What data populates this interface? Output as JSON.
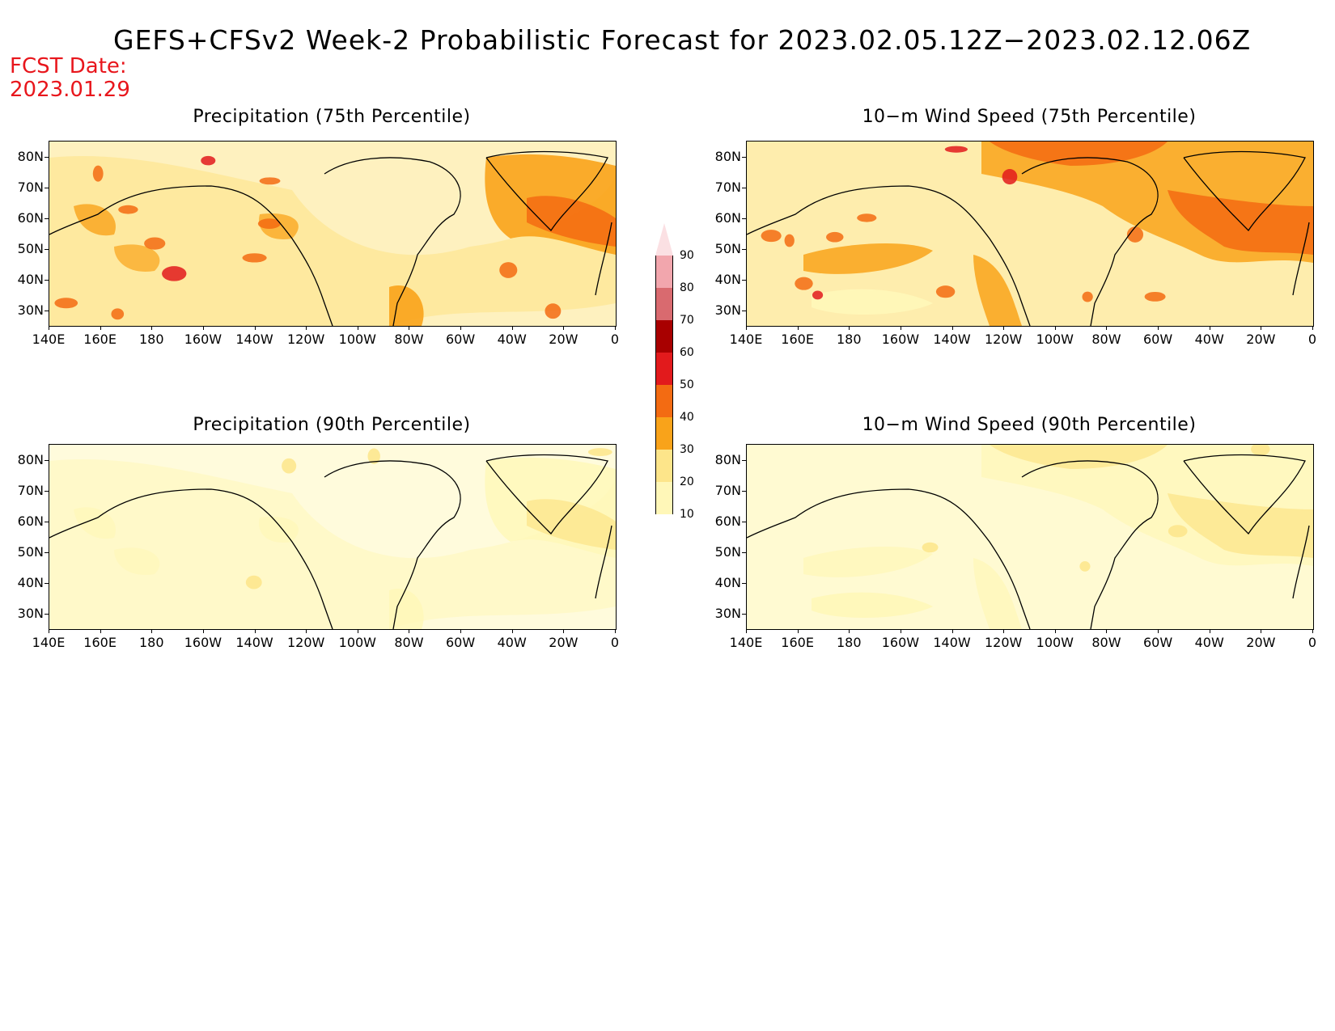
{
  "title": "GEFS+CFSv2 Week-2 Probabilistic Forecast for 2023.02.05.12Z−2023.02.12.06Z",
  "fcst_date_label": "FCST Date:",
  "fcst_date_value": "2023.01.29",
  "panels": [
    {
      "title": "Precipitation (75th Percentile)",
      "intensity": 1.0,
      "theme": "precip"
    },
    {
      "title": "10−m Wind Speed (75th Percentile)",
      "intensity": 1.0,
      "theme": "wind"
    },
    {
      "title": "Precipitation (90th Percentile)",
      "intensity": 0.35,
      "theme": "precip"
    },
    {
      "title": "10−m Wind Speed (90th Percentile)",
      "intensity": 0.35,
      "theme": "wind"
    }
  ],
  "lat_ticks": [
    "80N",
    "70N",
    "60N",
    "50N",
    "40N",
    "30N"
  ],
  "lon_ticks": [
    "140E",
    "160E",
    "180",
    "160W",
    "140W",
    "120W",
    "100W",
    "80W",
    "60W",
    "40W",
    "20W",
    "0"
  ],
  "legend": {
    "levels": [
      "10",
      "20",
      "30",
      "40",
      "50",
      "60",
      "70",
      "80",
      "90"
    ],
    "colors": [
      "#fff7b8",
      "#fde58a",
      "#f9a31a",
      "#f36b12",
      "#e21a1c",
      "#a80000",
      "#d96a6f",
      "#f2a6ad",
      "#fbe0e3"
    ]
  }
}
